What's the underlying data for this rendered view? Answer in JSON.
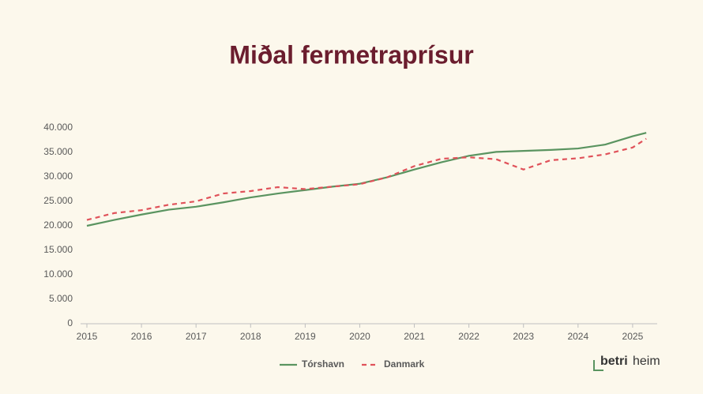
{
  "chart_data": {
    "type": "line",
    "title": "Miðal fermetraprísur",
    "x": [
      2015,
      2015.5,
      2016,
      2016.5,
      2017,
      2017.5,
      2018,
      2018.5,
      2019,
      2019.5,
      2020,
      2020.5,
      2021,
      2021.5,
      2022,
      2022.5,
      2023,
      2023.5,
      2024,
      2024.5,
      2025,
      2025.25
    ],
    "series": [
      {
        "name": "Tórshavn",
        "color": "#5a9460",
        "dash": false,
        "values": [
          20000,
          21200,
          22300,
          23300,
          23900,
          24800,
          25800,
          26600,
          27300,
          28000,
          28600,
          29900,
          31500,
          33000,
          34300,
          35100,
          35300,
          35500,
          35800,
          36600,
          38300,
          39000
        ]
      },
      {
        "name": "Danmark",
        "color": "#e0525a",
        "dash": true,
        "values": [
          21200,
          22600,
          23200,
          24300,
          25000,
          26600,
          27100,
          27900,
          27500,
          28000,
          28500,
          29900,
          32200,
          33700,
          34000,
          33600,
          31500,
          33400,
          33800,
          34600,
          36000,
          37800
        ]
      }
    ],
    "xlim": [
      2015,
      2025.45
    ],
    "xticks": [
      2015,
      2016,
      2017,
      2018,
      2019,
      2020,
      2021,
      2022,
      2023,
      2024,
      2025
    ],
    "ylim": [
      0,
      40000
    ],
    "yticks": [
      0,
      {
        "value": 5000,
        "label": "5.000"
      },
      {
        "value": 10000,
        "label": "10.000"
      },
      {
        "value": 15000,
        "label": "15.000"
      },
      {
        "value": 20000,
        "label": "20.000"
      },
      {
        "value": 25000,
        "label": "25.000"
      },
      {
        "value": 30000,
        "label": "30.000"
      },
      {
        "value": 35000,
        "label": "35.000"
      },
      {
        "value": 40000,
        "label": "40.000"
      }
    ],
    "legend": "bottom"
  },
  "logo": {
    "bold": "betri",
    "rest": "heim"
  }
}
